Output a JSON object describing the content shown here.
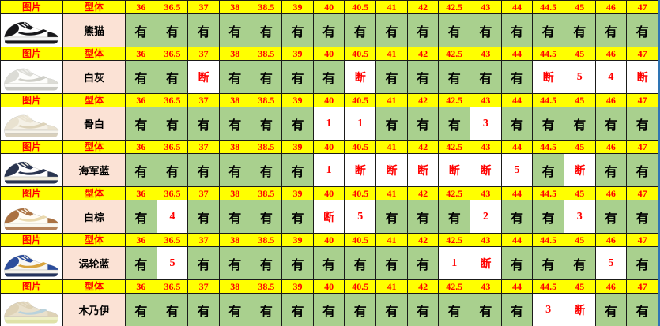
{
  "table": {
    "image_col_label": "图片",
    "model_col_label": "型体",
    "available_mark": "有",
    "soldout_mark": "断",
    "sizes": [
      "36",
      "36.5",
      "37",
      "38",
      "38.5",
      "39",
      "40",
      "40.5",
      "41",
      "42",
      "42.5",
      "43",
      "44",
      "44.5",
      "45",
      "46",
      "47"
    ],
    "products": [
      {
        "name": "熊猫",
        "image": "panda-dunk-shoe-image",
        "shoe_colors": {
          "base": "#ffffff",
          "overlay": "#17171a",
          "swoosh": "#17171a",
          "sole": "#f5f5f5",
          "outsole": "#1b1b1e",
          "lace": "#f2f2f2"
        },
        "stock": [
          "有",
          "有",
          "有",
          "有",
          "有",
          "有",
          "有",
          "有",
          "有",
          "有",
          "有",
          "有",
          "有",
          "有",
          "有",
          "有",
          "有"
        ]
      },
      {
        "name": "白灰",
        "image": "white-grey-dunk-shoe-image",
        "shoe_colors": {
          "base": "#fdfdfb",
          "overlay": "#dcdcd6",
          "swoosh": "#cfcfc8",
          "sole": "#fbfbf9",
          "outsole": "#c9c9c2",
          "lace": "#efefec"
        },
        "stock": [
          "有",
          "有",
          "断",
          "有",
          "有",
          "有",
          "有",
          "断",
          "有",
          "有",
          "有",
          "有",
          "有",
          "断",
          "5",
          "4",
          "断"
        ]
      },
      {
        "name": "骨白",
        "image": "bone-white-dunk-shoe-image",
        "shoe_colors": {
          "base": "#f5f1e6",
          "overlay": "#e9e2d0",
          "swoosh": "#ddd3ba",
          "sole": "#f7f4ea",
          "outsole": "#d8d0bc",
          "lace": "#f1ecdd"
        },
        "stock": [
          "有",
          "有",
          "有",
          "有",
          "有",
          "有",
          "1",
          "1",
          "有",
          "有",
          "有",
          "3",
          "有",
          "有",
          "有",
          "有",
          "有"
        ]
      },
      {
        "name": "海军蓝",
        "image": "navy-blue-dunk-shoe-image",
        "shoe_colors": {
          "base": "#fefefe",
          "overlay": "#2a3550",
          "swoosh": "#2a3550",
          "sole": "#f3eede",
          "outsole": "#2a3550",
          "lace": "#f5f2e6"
        },
        "stock": [
          "有",
          "有",
          "有",
          "有",
          "有",
          "有",
          "1",
          "断",
          "断",
          "断",
          "断",
          "断",
          "5",
          "有",
          "断",
          "有",
          "有"
        ]
      },
      {
        "name": "白棕",
        "image": "white-brown-dunk-shoe-image",
        "shoe_colors": {
          "base": "#fffcf4",
          "overlay": "#ab7242",
          "swoosh": "#ead9ae",
          "sole": "#fbf8ef",
          "outsole": "#b5835a",
          "lace": "#fbf6e9"
        },
        "stock": [
          "有",
          "4",
          "有",
          "有",
          "有",
          "有",
          "断",
          "5",
          "有",
          "有",
          "有",
          "2",
          "有",
          "有",
          "3",
          "有",
          "有"
        ]
      },
      {
        "name": "涡轮蓝",
        "image": "turbo-blue-dunk-shoe-image",
        "shoe_colors": {
          "base": "#f8f7f2",
          "overlay": "#2c4d9c",
          "swoosh": "#d9a43c",
          "sole": "#f6f4ec",
          "outsole": "#25355e",
          "lace": "#f3f1e8"
        },
        "stock": [
          "有",
          "5",
          "有",
          "有",
          "有",
          "有",
          "有",
          "有",
          "有",
          "有",
          "1",
          "断",
          "有",
          "有",
          "有",
          "5",
          "有"
        ]
      },
      {
        "name": "木乃伊",
        "image": "mummy-dunk-shoe-image",
        "shoe_colors": {
          "base": "#e9e0cb",
          "overlay": "#ded2b6",
          "swoosh": "#b9d2dc",
          "sole": "#eff0c6",
          "outsole": "#dfe2a8",
          "lace": "#e7dec9"
        },
        "stock": [
          "有",
          "有",
          "有",
          "有",
          "有",
          "有",
          "有",
          "有",
          "有",
          "有",
          "有",
          "有",
          "有",
          "3",
          "断",
          "有",
          "有"
        ]
      }
    ]
  },
  "colors": {
    "header_bg": "#FFFF00",
    "header_text": "#FF0000",
    "available_bg": "#A9D08E",
    "available_text": "#000000",
    "name_bg": "#FBE2D5",
    "alert_text": "#FF0000",
    "right_edge": "#2E74B5"
  }
}
